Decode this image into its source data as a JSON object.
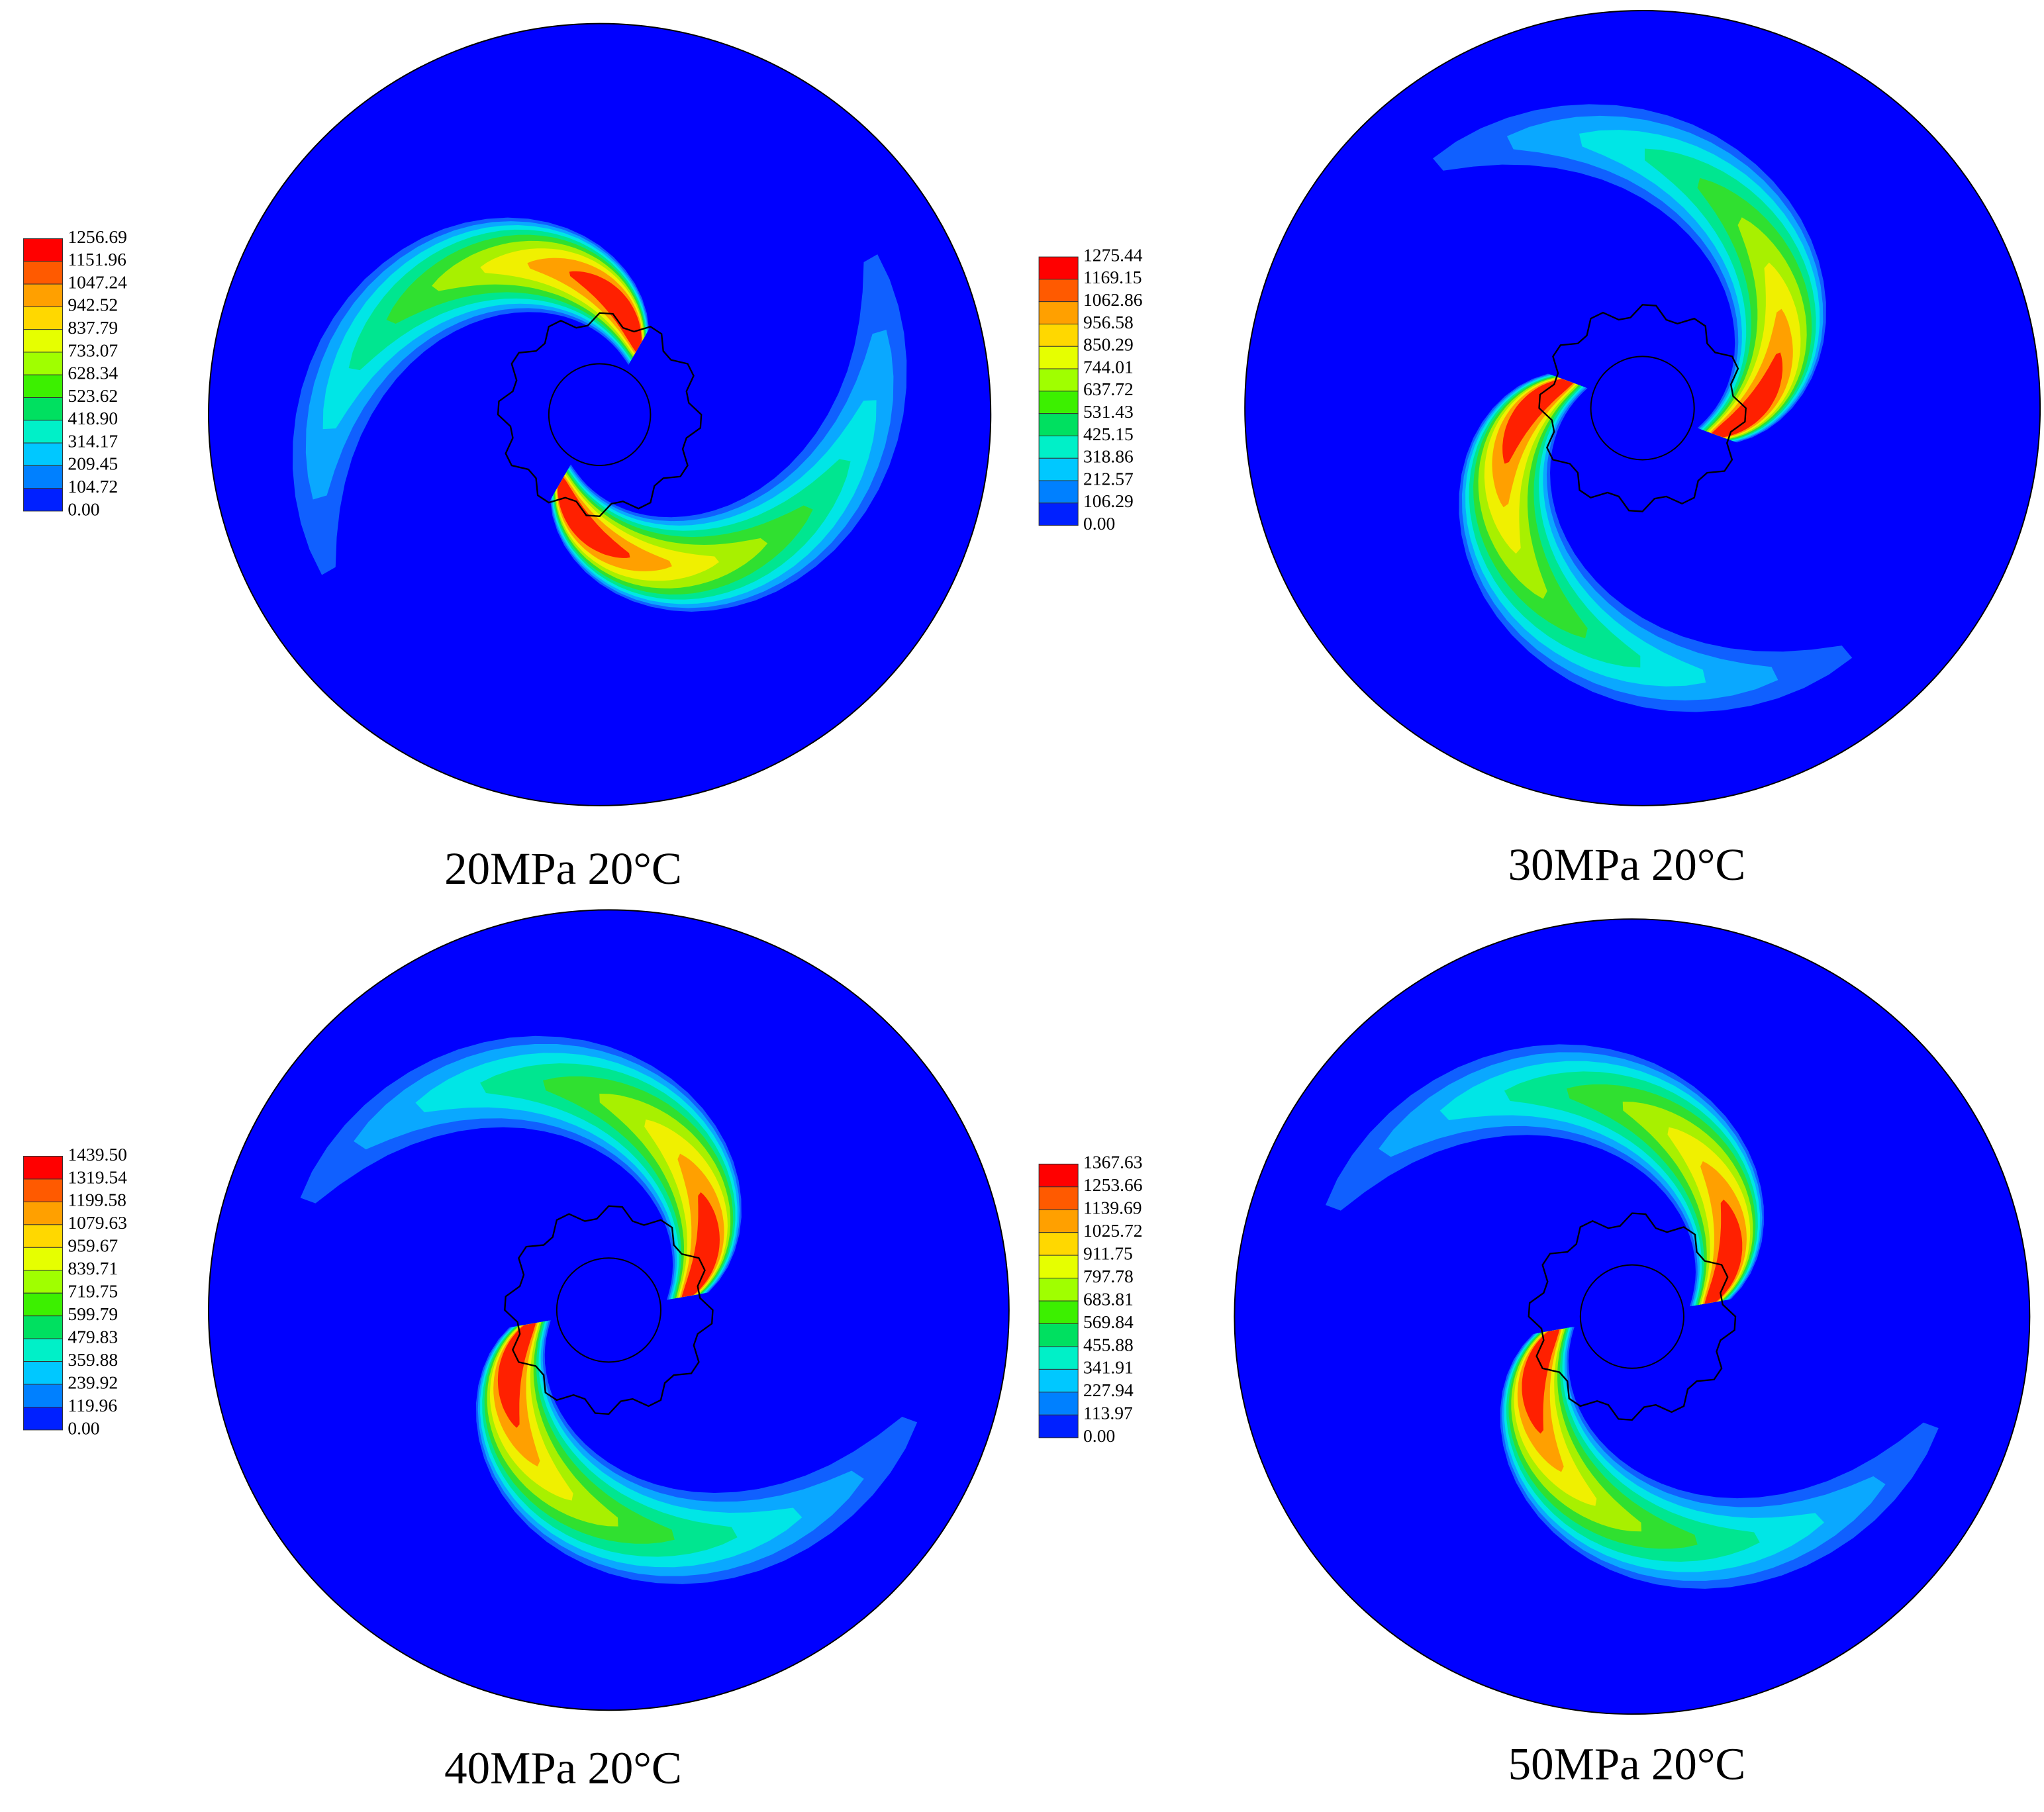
{
  "panels": [
    {
      "legend": [
        "1256.69",
        "1151.96",
        "1047.24",
        "942.52",
        "837.79",
        "733.07",
        "628.34",
        "523.62",
        "418.90",
        "314.17",
        "209.45",
        "104.72",
        "0.00"
      ],
      "caption": "20MPa 20°C"
    },
    {
      "legend": [
        "1275.44",
        "1169.15",
        "1062.86",
        "956.58",
        "850.29",
        "744.01",
        "637.72",
        "531.43",
        "425.15",
        "318.86",
        "212.57",
        "106.29",
        "0.00"
      ],
      "caption": "30MPa 20°C"
    },
    {
      "legend": [
        "1439.50",
        "1319.54",
        "1199.58",
        "1079.63",
        "959.67",
        "839.71",
        "719.75",
        "599.79",
        "479.83",
        "359.88",
        "239.92",
        "119.96",
        "0.00"
      ],
      "caption": "40MPa 20°C"
    },
    {
      "legend": [
        "1367.63",
        "1253.66",
        "1139.69",
        "1025.72",
        "911.75",
        "797.78",
        "683.81",
        "569.84",
        "455.88",
        "341.91",
        "227.94",
        "113.97",
        "0.00"
      ],
      "caption": "50MPa 20°C"
    }
  ]
}
